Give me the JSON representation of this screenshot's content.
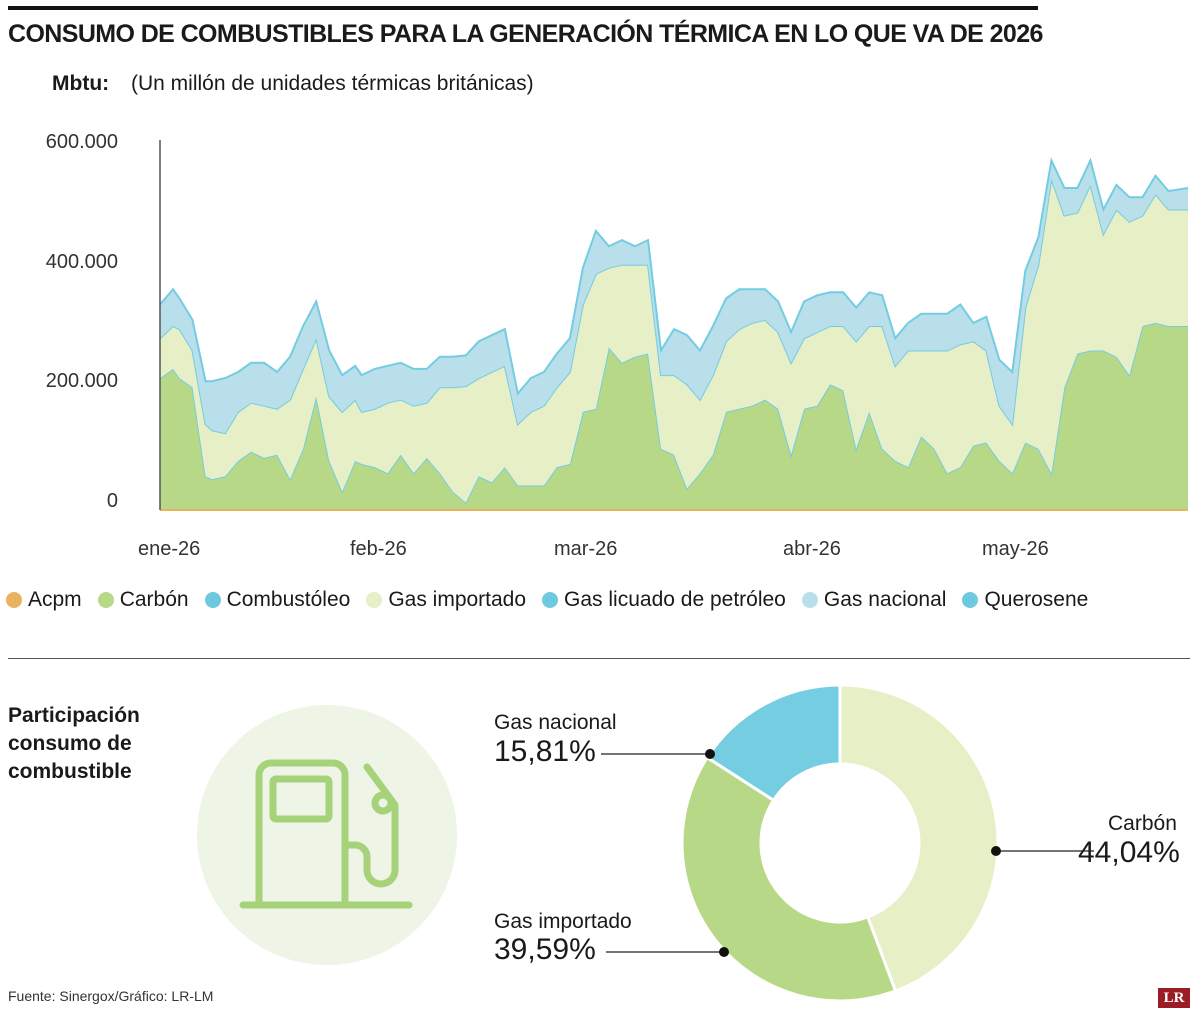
{
  "header": {
    "title": "CONSUMO DE COMBUSTIBLES PARA LA GENERACIÓN TÉRMICA EN LO QUE VA DE 2026",
    "unit_label": "Mbtu:",
    "unit_desc": "(Un millón de unidades térmicas británicas)"
  },
  "colors": {
    "acpm": "#e8b25f",
    "carbon": "#b7d987",
    "combustoleo": "#6ec8e0",
    "gas_importado": "#e6efc6",
    "glp": "#6ec8e0",
    "gas_nacional": "#b8dfea",
    "queroseno": "#6ec8e0",
    "line_blue": "#74cce3",
    "axis": "#555555"
  },
  "chart_data": [
    {
      "type": "area",
      "stacked": true,
      "xlabel": "",
      "ylabel": "",
      "ylim": [
        0,
        600000
      ],
      "y_ticks": [
        "600.000",
        "400.000",
        "200.000",
        "0"
      ],
      "y_tick_values": [
        600000,
        400000,
        200000,
        0
      ],
      "x_tick_labels": [
        "ene-26",
        "feb-26",
        "mar-26",
        "abr-26",
        "may-26"
      ],
      "x_tick_days": [
        0,
        31,
        59,
        90,
        120
      ],
      "x_range_days": [
        0,
        158
      ],
      "legend": [
        "Acpm",
        "Carbón",
        "Combustóleo",
        "Gas importado",
        "Gas licuado de petróleo",
        "Gas nacional",
        "Querosene"
      ],
      "legend_position": "bottom",
      "grid": false,
      "days": [
        0,
        2,
        3,
        5,
        7,
        8,
        10,
        12,
        14,
        16,
        18,
        20,
        22,
        24,
        26,
        28,
        30,
        31,
        33,
        35,
        37,
        39,
        41,
        43,
        45,
        47,
        49,
        51,
        53,
        55,
        57,
        59,
        61,
        63,
        65,
        67,
        69,
        71,
        73,
        75,
        77,
        79,
        81,
        83,
        85,
        87,
        89,
        91,
        93,
        95,
        97,
        99,
        101,
        103,
        105,
        107,
        109,
        111,
        113,
        115,
        117,
        119,
        121,
        123,
        125,
        127,
        129,
        131,
        133,
        135,
        137,
        139,
        141,
        143,
        145,
        147,
        149,
        151,
        153,
        155,
        158
      ],
      "series": [
        {
          "name": "Acpm",
          "values": [
            0,
            0,
            0,
            0,
            0,
            0,
            0,
            0,
            0,
            0,
            0,
            0,
            0,
            0,
            0,
            0,
            0,
            0,
            0,
            0,
            0,
            0,
            0,
            0,
            0,
            0,
            0,
            0,
            0,
            0,
            0,
            0,
            0,
            0,
            0,
            0,
            0,
            0,
            0,
            0,
            0,
            0,
            0,
            0,
            0,
            0,
            0,
            0,
            0,
            0,
            0,
            0,
            0,
            0,
            0,
            0,
            0,
            0,
            0,
            0,
            0,
            0,
            0,
            0,
            0,
            0,
            0,
            0,
            0,
            0,
            0,
            0,
            0,
            0,
            0,
            0,
            0,
            0,
            0,
            0,
            0
          ]
        },
        {
          "name": "Carbón",
          "values": [
            215000,
            230000,
            215000,
            200000,
            55000,
            50000,
            55000,
            80000,
            95000,
            85000,
            90000,
            50000,
            100000,
            185000,
            80000,
            30000,
            80000,
            75000,
            70000,
            60000,
            90000,
            60000,
            85000,
            60000,
            30000,
            12000,
            55000,
            45000,
            70000,
            40000,
            40000,
            40000,
            70000,
            75000,
            160000,
            165000,
            265000,
            240000,
            250000,
            255000,
            100000,
            90000,
            35000,
            60000,
            90000,
            160000,
            165000,
            170000,
            180000,
            165000,
            90000,
            165000,
            170000,
            205000,
            195000,
            100000,
            160000,
            100000,
            80000,
            70000,
            120000,
            100000,
            60000,
            70000,
            105000,
            110000,
            80000,
            60000,
            110000,
            100000,
            60000,
            200000,
            255000,
            260000,
            260000,
            250000,
            220000,
            300000,
            305000,
            300000,
            300000
          ]
        },
        {
          "name": "Combustóleo",
          "values": [
            0,
            0,
            0,
            0,
            0,
            0,
            0,
            0,
            0,
            0,
            0,
            0,
            0,
            0,
            0,
            0,
            0,
            0,
            0,
            0,
            0,
            0,
            0,
            0,
            0,
            0,
            0,
            0,
            0,
            0,
            0,
            0,
            0,
            0,
            0,
            0,
            0,
            0,
            0,
            0,
            0,
            0,
            0,
            0,
            0,
            0,
            0,
            0,
            0,
            0,
            0,
            0,
            0,
            0,
            0,
            0,
            0,
            0,
            0,
            0,
            0,
            0,
            0,
            0,
            0,
            0,
            0,
            0,
            0,
            0,
            0,
            0,
            0,
            0,
            0,
            0,
            0,
            0,
            0,
            0,
            0
          ]
        },
        {
          "name": "Gas importado",
          "values": [
            65000,
            70000,
            80000,
            60000,
            85000,
            80000,
            70000,
            80000,
            80000,
            85000,
            75000,
            130000,
            130000,
            95000,
            105000,
            130000,
            100000,
            85000,
            95000,
            115000,
            90000,
            110000,
            90000,
            140000,
            170000,
            190000,
            160000,
            180000,
            165000,
            100000,
            120000,
            130000,
            130000,
            150000,
            175000,
            220000,
            130000,
            160000,
            150000,
            145000,
            120000,
            130000,
            170000,
            120000,
            130000,
            115000,
            130000,
            135000,
            130000,
            125000,
            150000,
            115000,
            120000,
            95000,
            105000,
            175000,
            140000,
            200000,
            155000,
            190000,
            140000,
            160000,
            200000,
            200000,
            170000,
            150000,
            90000,
            80000,
            220000,
            300000,
            480000,
            280000,
            230000,
            270000,
            190000,
            240000,
            250000,
            180000,
            210000,
            190000,
            190000
          ]
        },
        {
          "name": "Gas licuado de petróleo",
          "values": [
            0,
            0,
            0,
            0,
            0,
            0,
            0,
            0,
            0,
            0,
            0,
            0,
            0,
            0,
            0,
            0,
            0,
            0,
            0,
            0,
            0,
            0,
            0,
            0,
            0,
            0,
            0,
            0,
            0,
            0,
            0,
            0,
            0,
            0,
            0,
            0,
            0,
            0,
            0,
            0,
            0,
            0,
            0,
            0,
            0,
            0,
            0,
            0,
            0,
            0,
            0,
            0,
            0,
            0,
            0,
            0,
            0,
            0,
            0,
            0,
            0,
            0,
            0,
            0,
            0,
            0,
            0,
            0,
            0,
            0,
            0,
            0,
            0,
            0,
            0,
            0,
            0,
            0,
            0,
            0,
            0
          ]
        },
        {
          "name": "Gas nacional",
          "values": [
            55000,
            60000,
            50000,
            50000,
            70000,
            80000,
            90000,
            65000,
            65000,
            70000,
            60000,
            70000,
            70000,
            60000,
            75000,
            60000,
            55000,
            60000,
            65000,
            60000,
            60000,
            60000,
            55000,
            50000,
            50000,
            50000,
            60000,
            60000,
            60000,
            50000,
            55000,
            55000,
            55000,
            55000,
            60000,
            70000,
            35000,
            40000,
            30000,
            40000,
            40000,
            75000,
            80000,
            80000,
            80000,
            70000,
            65000,
            55000,
            50000,
            50000,
            50000,
            60000,
            60000,
            55000,
            55000,
            55000,
            55000,
            50000,
            45000,
            45000,
            60000,
            60000,
            60000,
            65000,
            30000,
            55000,
            75000,
            85000,
            60000,
            45000,
            30000,
            45000,
            40000,
            40000,
            40000,
            40000,
            40000,
            30000,
            30000,
            30000,
            35000
          ]
        },
        {
          "name": "Querosene",
          "values": [
            0,
            0,
            0,
            0,
            0,
            0,
            0,
            0,
            0,
            0,
            0,
            0,
            0,
            0,
            0,
            0,
            0,
            0,
            0,
            0,
            0,
            0,
            0,
            0,
            0,
            0,
            0,
            0,
            0,
            0,
            0,
            0,
            0,
            0,
            0,
            0,
            0,
            0,
            0,
            0,
            0,
            0,
            0,
            0,
            0,
            0,
            0,
            0,
            0,
            0,
            0,
            0,
            0,
            0,
            0,
            0,
            0,
            0,
            0,
            0,
            0,
            0,
            0,
            0,
            0,
            0,
            0,
            0,
            0,
            0,
            0,
            0,
            0,
            0,
            0,
            0,
            0,
            0,
            0,
            0,
            0
          ]
        }
      ]
    },
    {
      "type": "pie",
      "donut": true,
      "title": "Participación consumo de combustible",
      "slices": [
        {
          "name": "Carbón",
          "value": 44.04,
          "label": "44,04%"
        },
        {
          "name": "Gas importado",
          "value": 39.59,
          "label": "39,59%"
        },
        {
          "name": "Gas nacional",
          "value": 15.81,
          "label": "15,81%"
        }
      ],
      "slice_colors": [
        "#e6efc6",
        "#b7d987",
        "#75cde2"
      ]
    }
  ],
  "footer": {
    "source": "Fuente: Sinergox/Gráfico: LR-LM",
    "logo_text": "LR"
  },
  "icons": {
    "fuel_pump": "fuel-pump-icon"
  }
}
